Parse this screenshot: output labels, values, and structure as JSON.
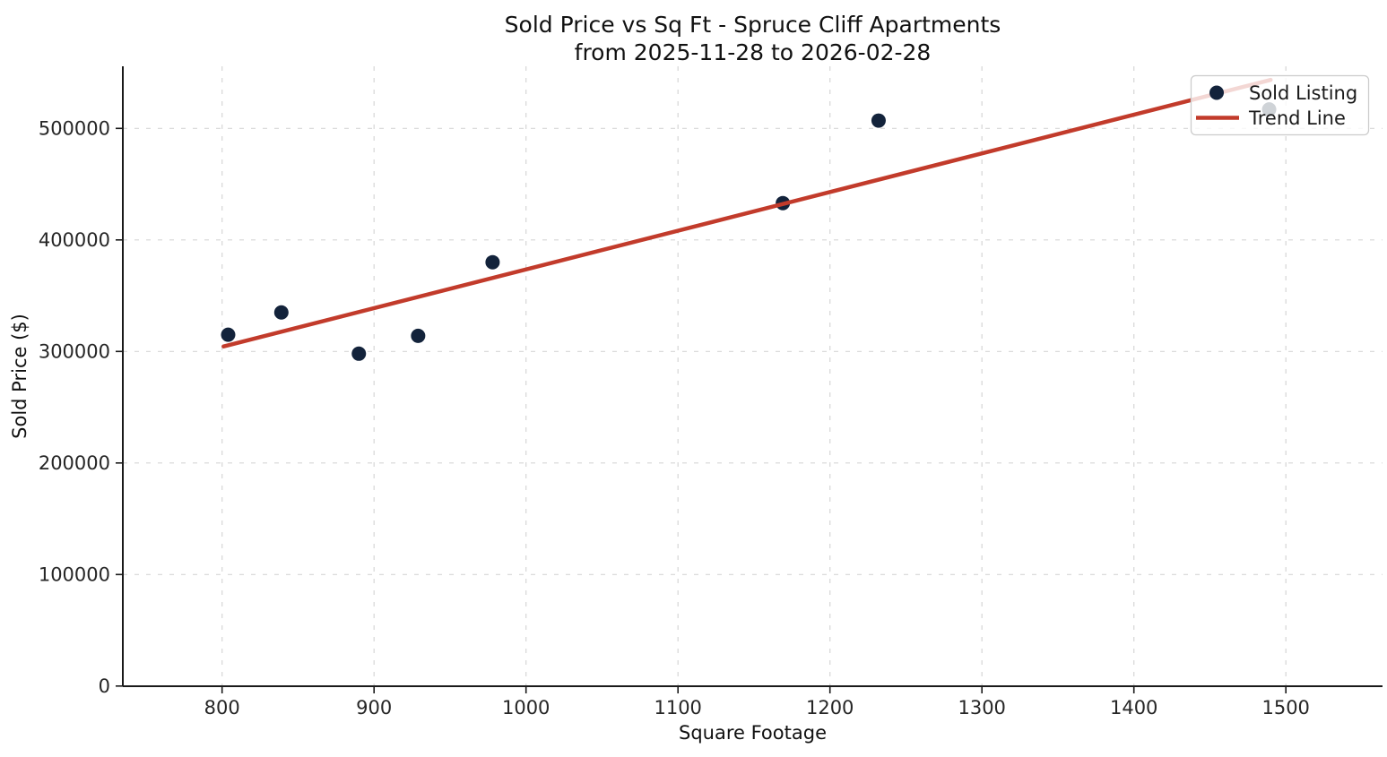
{
  "figure": {
    "title": "Sold Price vs Sq Ft - Spruce Cliff Apartments",
    "subtitle": "from 2025-11-28 to 2026-02-28"
  },
  "chart_data": {
    "type": "scatter",
    "title": "Sold Price vs Sq Ft - Spruce Cliff Apartments",
    "subtitle": "from 2025-11-28 to 2026-02-28",
    "xlabel": "Square Footage",
    "ylabel": "Sold Price ($)",
    "xlim": [
      735,
      1564
    ],
    "ylim": [
      0,
      555000
    ],
    "x_ticks": [
      800,
      900,
      1000,
      1100,
      1200,
      1300,
      1400,
      1500
    ],
    "y_ticks": [
      0,
      100000,
      200000,
      300000,
      400000,
      500000
    ],
    "grid": "dashed",
    "legend_position": "upper right",
    "series": [
      {
        "name": "Sold Listing",
        "type": "scatter",
        "color": "#13233B",
        "points": [
          [
            804,
            315000
          ],
          [
            839,
            335000
          ],
          [
            890,
            298000
          ],
          [
            929,
            314000
          ],
          [
            978,
            380000
          ],
          [
            1169,
            433000
          ],
          [
            1232,
            507000
          ],
          [
            1489,
            517000
          ]
        ]
      },
      {
        "name": "Trend Line",
        "type": "line",
        "color": "#C23B2B",
        "points": [
          [
            801,
            304500
          ],
          [
            1490,
            543500
          ]
        ]
      }
    ],
    "legend": [
      {
        "label": "Sold Listing",
        "marker": "dot",
        "color": "#13233B"
      },
      {
        "label": "Trend Line",
        "marker": "line",
        "color": "#C23B2B"
      }
    ]
  },
  "colors": {
    "scatter": "#13233B",
    "trend": "#C23B2B",
    "grid": "#c9c9c9",
    "spine": "#1a1a1a",
    "legend_border": "#cccccc"
  }
}
